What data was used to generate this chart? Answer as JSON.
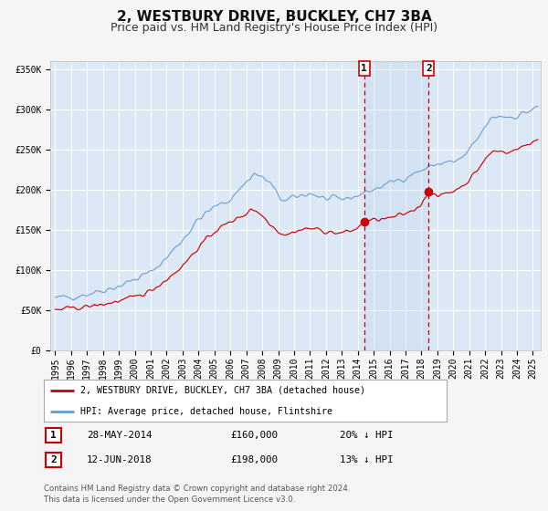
{
  "title": "2, WESTBURY DRIVE, BUCKLEY, CH7 3BA",
  "subtitle": "Price paid vs. HM Land Registry's House Price Index (HPI)",
  "ylim": [
    0,
    360000
  ],
  "xlim_start": 1994.7,
  "xlim_end": 2025.5,
  "red_line_label": "2, WESTBURY DRIVE, BUCKLEY, CH7 3BA (detached house)",
  "blue_line_label": "HPI: Average price, detached house, Flintshire",
  "sale1_date": "28-MAY-2014",
  "sale1_price": 160000,
  "sale1_pct": "20%",
  "sale1_year": 2014.41,
  "sale2_date": "12-JUN-2018",
  "sale2_price": 198000,
  "sale2_pct": "13%",
  "sale2_year": 2018.45,
  "footnote1": "Contains HM Land Registry data © Crown copyright and database right 2024.",
  "footnote2": "This data is licensed under the Open Government Licence v3.0.",
  "background_color": "#dce8f5",
  "plot_bg_color": "#dce8f5",
  "red_color": "#cc0000",
  "blue_color": "#6699cc",
  "grid_color": "#ffffff",
  "title_fontsize": 11,
  "subtitle_fontsize": 9,
  "tick_fontsize": 7,
  "yticks": [
    0,
    50000,
    100000,
    150000,
    200000,
    250000,
    300000,
    350000
  ],
  "ytick_labels": [
    "£0",
    "£50K",
    "£100K",
    "£150K",
    "£200K",
    "£250K",
    "£300K",
    "£350K"
  ]
}
